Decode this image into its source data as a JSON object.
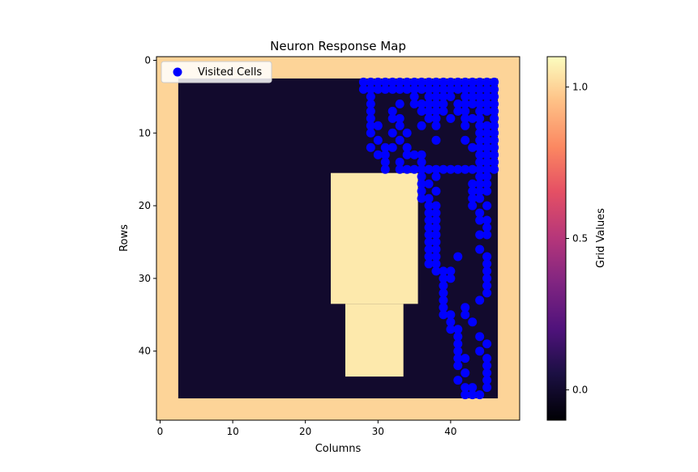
{
  "chart_data": {
    "type": "heatmap",
    "title": "Neuron Response Map",
    "xlabel": "Columns",
    "ylabel": "Rows",
    "x_ticks": [
      0,
      10,
      20,
      30,
      40
    ],
    "y_ticks": [
      0,
      10,
      20,
      30,
      40
    ],
    "grid_shape": [
      50,
      50
    ],
    "colormap": "magma",
    "color_range": [
      -0.1,
      1.1
    ],
    "colorbar_label": "Grid Values",
    "colorbar_ticks": [
      0.0,
      0.5,
      1.0
    ],
    "colorbar_tick_labels": [
      "0.0",
      "0.5",
      "1.0"
    ],
    "grid_regions": [
      {
        "value": 1,
        "row_range": [
          0,
          49
        ],
        "col_range": [
          0,
          49
        ]
      },
      {
        "value": 0,
        "row_range": [
          3,
          46
        ],
        "col_range": [
          3,
          46
        ]
      },
      {
        "value": 1.05,
        "row_range": [
          16,
          33
        ],
        "col_range": [
          24,
          35
        ]
      },
      {
        "value": 1.05,
        "row_range": [
          34,
          43
        ],
        "col_range": [
          26,
          33
        ]
      }
    ],
    "legend": {
      "placement": "top-left",
      "label": "Visited Cells"
    },
    "series": [
      {
        "name": "Visited Cells",
        "type": "scatter",
        "color": "#0000ff",
        "points": [
          [
            28,
            3
          ],
          [
            29,
            3
          ],
          [
            30,
            3
          ],
          [
            31,
            3
          ],
          [
            32,
            3
          ],
          [
            33,
            3
          ],
          [
            34,
            3
          ],
          [
            35,
            3
          ],
          [
            36,
            3
          ],
          [
            37,
            3
          ],
          [
            38,
            3
          ],
          [
            39,
            3
          ],
          [
            40,
            3
          ],
          [
            41,
            3
          ],
          [
            42,
            3
          ],
          [
            43,
            3
          ],
          [
            44,
            3
          ],
          [
            45,
            3
          ],
          [
            46,
            3
          ],
          [
            28,
            4
          ],
          [
            29,
            4
          ],
          [
            30,
            4
          ],
          [
            31,
            4
          ],
          [
            32,
            4
          ],
          [
            33,
            4
          ],
          [
            34,
            4
          ],
          [
            35,
            4
          ],
          [
            36,
            4
          ],
          [
            37,
            4
          ],
          [
            38,
            4
          ],
          [
            39,
            4
          ],
          [
            40,
            4
          ],
          [
            41,
            4
          ],
          [
            42,
            4
          ],
          [
            43,
            4
          ],
          [
            44,
            4
          ],
          [
            45,
            4
          ],
          [
            46,
            4
          ],
          [
            29,
            5
          ],
          [
            35,
            5
          ],
          [
            37,
            5
          ],
          [
            38,
            5
          ],
          [
            39,
            5
          ],
          [
            40,
            5
          ],
          [
            42,
            5
          ],
          [
            43,
            5
          ],
          [
            44,
            5
          ],
          [
            45,
            5
          ],
          [
            46,
            5
          ],
          [
            29,
            6
          ],
          [
            33,
            6
          ],
          [
            35,
            6
          ],
          [
            36,
            6
          ],
          [
            37,
            6
          ],
          [
            38,
            6
          ],
          [
            39,
            6
          ],
          [
            41,
            6
          ],
          [
            42,
            6
          ],
          [
            43,
            6
          ],
          [
            44,
            6
          ],
          [
            45,
            6
          ],
          [
            46,
            6
          ],
          [
            29,
            7
          ],
          [
            32,
            7
          ],
          [
            36,
            7
          ],
          [
            37,
            7
          ],
          [
            38,
            7
          ],
          [
            39,
            7
          ],
          [
            41,
            7
          ],
          [
            42,
            7
          ],
          [
            44,
            7
          ],
          [
            45,
            7
          ],
          [
            46,
            7
          ],
          [
            29,
            8
          ],
          [
            32,
            8
          ],
          [
            33,
            8
          ],
          [
            37,
            8
          ],
          [
            38,
            8
          ],
          [
            40,
            8
          ],
          [
            42,
            8
          ],
          [
            43,
            8
          ],
          [
            44,
            8
          ],
          [
            46,
            8
          ],
          [
            29,
            9
          ],
          [
            30,
            9
          ],
          [
            33,
            9
          ],
          [
            36,
            9
          ],
          [
            38,
            9
          ],
          [
            42,
            9
          ],
          [
            44,
            9
          ],
          [
            45,
            9
          ],
          [
            46,
            9
          ],
          [
            29,
            10
          ],
          [
            32,
            10
          ],
          [
            34,
            10
          ],
          [
            44,
            10
          ],
          [
            45,
            10
          ],
          [
            46,
            10
          ],
          [
            30,
            11
          ],
          [
            33,
            11
          ],
          [
            38,
            11
          ],
          [
            42,
            11
          ],
          [
            44,
            11
          ],
          [
            45,
            11
          ],
          [
            46,
            11
          ],
          [
            29,
            12
          ],
          [
            31,
            12
          ],
          [
            32,
            12
          ],
          [
            34,
            12
          ],
          [
            43,
            12
          ],
          [
            44,
            12
          ],
          [
            45,
            12
          ],
          [
            46,
            12
          ],
          [
            30,
            13
          ],
          [
            31,
            13
          ],
          [
            34,
            13
          ],
          [
            35,
            13
          ],
          [
            36,
            13
          ],
          [
            44,
            13
          ],
          [
            45,
            13
          ],
          [
            46,
            13
          ],
          [
            31,
            14
          ],
          [
            33,
            14
          ],
          [
            36,
            14
          ],
          [
            44,
            14
          ],
          [
            45,
            14
          ],
          [
            46,
            14
          ],
          [
            31,
            15
          ],
          [
            33,
            15
          ],
          [
            34,
            15
          ],
          [
            35,
            15
          ],
          [
            36,
            15
          ],
          [
            37,
            15
          ],
          [
            38,
            15
          ],
          [
            39,
            15
          ],
          [
            40,
            15
          ],
          [
            41,
            15
          ],
          [
            42,
            15
          ],
          [
            43,
            15
          ],
          [
            44,
            15
          ],
          [
            45,
            15
          ],
          [
            46,
            15
          ],
          [
            36,
            16
          ],
          [
            38,
            16
          ],
          [
            44,
            16
          ],
          [
            45,
            16
          ],
          [
            36,
            17
          ],
          [
            37,
            17
          ],
          [
            43,
            17
          ],
          [
            44,
            17
          ],
          [
            45,
            17
          ],
          [
            36,
            18
          ],
          [
            38,
            18
          ],
          [
            43,
            18
          ],
          [
            44,
            18
          ],
          [
            45,
            18
          ],
          [
            36,
            19
          ],
          [
            37,
            19
          ],
          [
            43,
            19
          ],
          [
            44,
            19
          ],
          [
            37,
            20
          ],
          [
            38,
            20
          ],
          [
            43,
            20
          ],
          [
            45,
            20
          ],
          [
            37,
            21
          ],
          [
            38,
            21
          ],
          [
            44,
            21
          ],
          [
            37,
            22
          ],
          [
            38,
            22
          ],
          [
            44,
            22
          ],
          [
            45,
            22
          ],
          [
            37,
            23
          ],
          [
            38,
            23
          ],
          [
            45,
            23
          ],
          [
            37,
            24
          ],
          [
            38,
            24
          ],
          [
            44,
            24
          ],
          [
            45,
            24
          ],
          [
            37,
            25
          ],
          [
            38,
            25
          ],
          [
            37,
            26
          ],
          [
            38,
            26
          ],
          [
            44,
            26
          ],
          [
            37,
            27
          ],
          [
            38,
            27
          ],
          [
            41,
            27
          ],
          [
            45,
            27
          ],
          [
            37,
            28
          ],
          [
            38,
            28
          ],
          [
            45,
            28
          ],
          [
            38,
            29
          ],
          [
            39,
            29
          ],
          [
            40,
            29
          ],
          [
            45,
            29
          ],
          [
            39,
            30
          ],
          [
            40,
            30
          ],
          [
            45,
            30
          ],
          [
            39,
            31
          ],
          [
            45,
            31
          ],
          [
            39,
            32
          ],
          [
            45,
            32
          ],
          [
            39,
            33
          ],
          [
            44,
            33
          ],
          [
            39,
            34
          ],
          [
            42,
            34
          ],
          [
            39,
            35
          ],
          [
            40,
            35
          ],
          [
            42,
            35
          ],
          [
            40,
            36
          ],
          [
            43,
            36
          ],
          [
            40,
            37
          ],
          [
            41,
            37
          ],
          [
            41,
            38
          ],
          [
            44,
            38
          ],
          [
            41,
            39
          ],
          [
            45,
            39
          ],
          [
            41,
            40
          ],
          [
            44,
            40
          ],
          [
            41,
            41
          ],
          [
            42,
            41
          ],
          [
            45,
            41
          ],
          [
            41,
            42
          ],
          [
            45,
            42
          ],
          [
            42,
            43
          ],
          [
            45,
            43
          ],
          [
            41,
            44
          ],
          [
            45,
            44
          ],
          [
            42,
            45
          ],
          [
            43,
            45
          ],
          [
            45,
            45
          ],
          [
            42,
            46
          ],
          [
            43,
            46
          ],
          [
            44,
            46
          ]
        ]
      }
    ]
  }
}
